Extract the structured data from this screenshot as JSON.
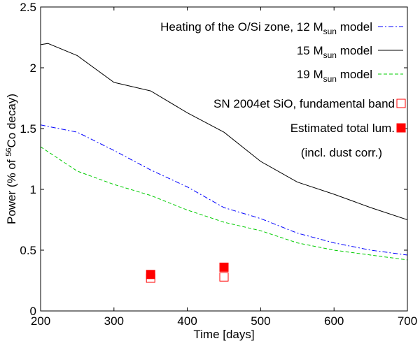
{
  "chart_data": {
    "type": "line",
    "xlabel": "Time [days]",
    "ylabel": {
      "prefix": "Power (% of ",
      "superscript": "56",
      "suffix": "Co decay)"
    },
    "xlim": [
      200,
      700
    ],
    "ylim": [
      0,
      2.5
    ],
    "xticks": [
      200,
      300,
      400,
      500,
      600,
      700
    ],
    "yticks": [
      0,
      0.5,
      1,
      1.5,
      2,
      2.5
    ],
    "ytick_labels": [
      "0",
      "0.5",
      "1",
      "1.5",
      "2",
      "2.5"
    ],
    "grid": false,
    "legend_position": "top-right",
    "series": [
      {
        "name": "Heating of the O/Si zone, 12 M_sun model",
        "legend": {
          "main": "Heating of the O/Si zone, 12 M",
          "sub": "sun",
          "tail": " model"
        },
        "color": "#0000ff",
        "dash": "dashdot",
        "x": [
          200,
          250,
          300,
          350,
          400,
          450,
          500,
          550,
          600,
          650,
          700
        ],
        "y": [
          1.53,
          1.47,
          1.32,
          1.16,
          1.02,
          0.85,
          0.76,
          0.64,
          0.56,
          0.5,
          0.46
        ]
      },
      {
        "name": "15 M_sun model",
        "legend": {
          "main": "15 M",
          "sub": "sun",
          "tail": " model"
        },
        "color": "#000000",
        "dash": "solid",
        "x": [
          200,
          210,
          250,
          300,
          350,
          400,
          450,
          500,
          550,
          600,
          650,
          700
        ],
        "y": [
          2.19,
          2.2,
          2.1,
          1.88,
          1.81,
          1.63,
          1.47,
          1.23,
          1.06,
          0.96,
          0.85,
          0.75
        ]
      },
      {
        "name": "19 M_sun model",
        "legend": {
          "main": "19 M",
          "sub": "sun",
          "tail": " model"
        },
        "color": "#00cc00",
        "dash": "dashed",
        "x": [
          200,
          250,
          300,
          350,
          400,
          450,
          500,
          550,
          600,
          650,
          700
        ],
        "y": [
          1.35,
          1.15,
          1.04,
          0.95,
          0.83,
          0.73,
          0.66,
          0.56,
          0.5,
          0.46,
          0.42
        ]
      }
    ],
    "markers": [
      {
        "name": "SN 2004et SiO, fundamental band",
        "style": "open-square",
        "color": "#ff0000",
        "x": [
          350,
          450
        ],
        "y": [
          0.27,
          0.28
        ]
      },
      {
        "name": "Estimated total lum.",
        "style": "filled-square",
        "color": "#ff0000",
        "x": [
          350,
          450
        ],
        "y": [
          0.3,
          0.36
        ]
      }
    ],
    "annotations": [
      "(incl. dust corr.)"
    ]
  }
}
